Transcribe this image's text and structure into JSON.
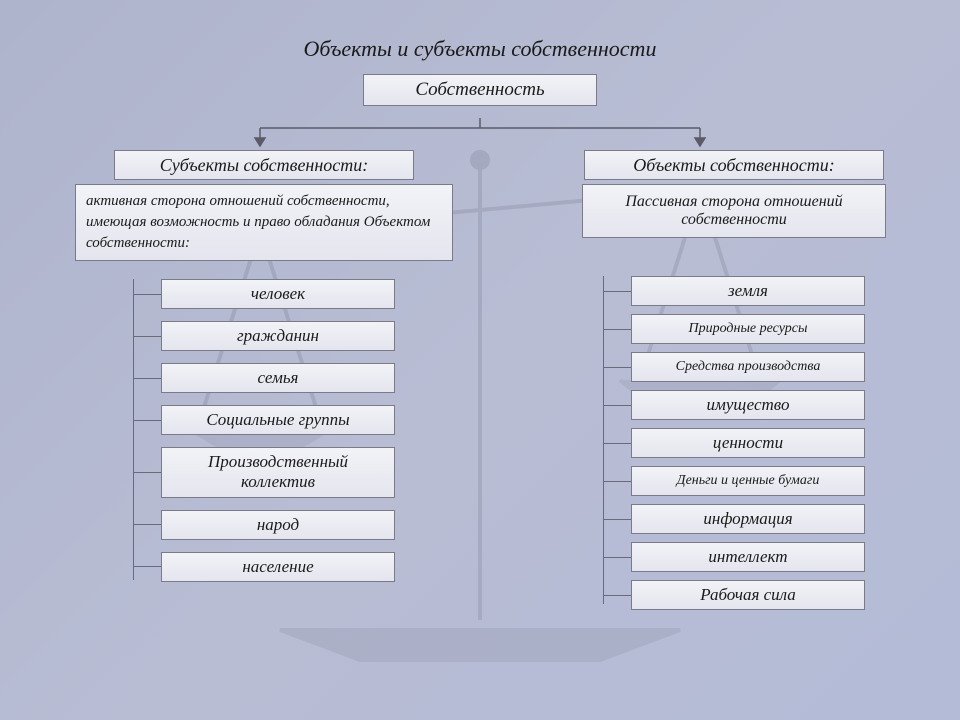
{
  "title": "Объекты и субъекты собственности",
  "root": "Собственность",
  "left": {
    "header": "Субъекты собственности:",
    "description": "активная сторона отношений собственности, имеющая возможность и право обладания Объектом собственности:",
    "items": [
      {
        "label": "человек",
        "size": "normal"
      },
      {
        "label": "гражданин",
        "size": "normal"
      },
      {
        "label": "семья",
        "size": "normal"
      },
      {
        "label": "Социальные группы",
        "size": "normal"
      },
      {
        "label": "Производственный коллектив",
        "size": "tall"
      },
      {
        "label": "народ",
        "size": "normal"
      },
      {
        "label": "население",
        "size": "normal"
      }
    ]
  },
  "right": {
    "header": "Объекты собственности:",
    "description": "Пассивная сторона отношений собственности",
    "items": [
      {
        "label": "земля",
        "size": "normal"
      },
      {
        "label": "Природные ресурсы",
        "size": "sm"
      },
      {
        "label": "Средства производства",
        "size": "sm"
      },
      {
        "label": "имущество",
        "size": "normal"
      },
      {
        "label": "ценности",
        "size": "normal"
      },
      {
        "label": "Деньги и ценные бумаги",
        "size": "sm"
      },
      {
        "label": "информация",
        "size": "normal"
      },
      {
        "label": "интеллект",
        "size": "normal"
      },
      {
        "label": "Рабочая сила",
        "size": "normal"
      }
    ]
  },
  "style": {
    "box_bg_top": "#f2f3f7",
    "box_bg_bottom": "#e4e5ee",
    "box_border": "#7a7a88",
    "page_bg_a": "#aeb4cc",
    "page_bg_b": "#b4bbd6",
    "text_color": "#1a1a1a",
    "title_fontsize": 22,
    "header_fontsize": 18,
    "item_fontsize": 17,
    "item_small_fontsize": 14,
    "desc_fontsize": 15
  }
}
